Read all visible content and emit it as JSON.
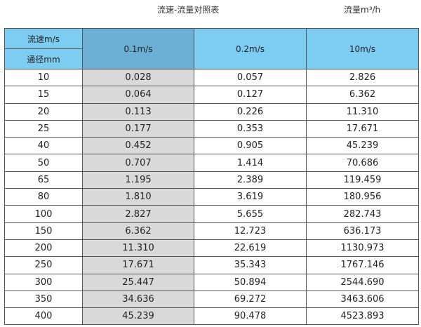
{
  "title": "流速-流量对照表",
  "unit_label": "流量m³/h",
  "header": {
    "velocity_label": "流速m/s",
    "diameter_label": "通径mm",
    "columns": [
      "0.1m/s",
      "0.2m/s",
      "10m/s"
    ]
  },
  "rows": [
    [
      "10",
      "0.028",
      "0.057",
      "2.826"
    ],
    [
      "15",
      "0.064",
      "0.127",
      "6.362"
    ],
    [
      "20",
      "0.113",
      "0.226",
      "11.310"
    ],
    [
      "25",
      "0.177",
      "0.353",
      "17.671"
    ],
    [
      "40",
      "0.452",
      "0.905",
      "45.239"
    ],
    [
      "50",
      "0.707",
      "1.414",
      "70.686"
    ],
    [
      "65",
      "1.195",
      "2.389",
      "119.459"
    ],
    [
      "80",
      "1.810",
      "3.619",
      "180.956"
    ],
    [
      "100",
      "2.827",
      "5.655",
      "282.743"
    ],
    [
      "150",
      "6.362",
      "12.723",
      "636.173"
    ],
    [
      "200",
      "11.310",
      "22.619",
      "1130.973"
    ],
    [
      "250",
      "17.671",
      "35.343",
      "1767.146"
    ],
    [
      "300",
      "25.447",
      "50.894",
      "2544.690"
    ],
    [
      "350",
      "34.636",
      "69.272",
      "3463.606"
    ],
    [
      "400",
      "45.239",
      "90.478",
      "4523.893"
    ]
  ],
  "colors": {
    "header": "#7dcdf3",
    "header_highlight": "#6bb0d4",
    "highlight_column": "#d9d9d9",
    "border": "#555555"
  }
}
